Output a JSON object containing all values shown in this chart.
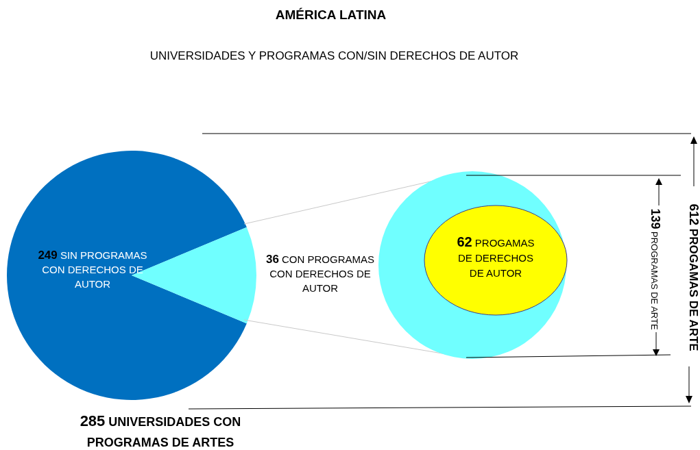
{
  "chart_data": {
    "type": "pie",
    "title": "AMÉRICA LATINA",
    "subtitle": "UNIVERSIDADES Y PROGRAMAS CON/SIN DERECHOS DE AUTOR",
    "categories": [
      "SIN PROGRAMAS CON DERECHOS DE AUTOR",
      "CON PROGRAMAS CON DERECHOS DE AUTOR"
    ],
    "values": [
      249,
      36
    ],
    "colors": [
      "#0070c0",
      "#70ffff"
    ],
    "data_labels": true,
    "annotations": [
      "62 PROGAMAS DE DERECHOS DE AUTOR",
      "139 PROGRAMAS DE ARTE",
      "612 PROGAMAS DE ARTE",
      "285 UNIVERSIDADES CON PROGRAMAS DE ARTES"
    ]
  }
}
